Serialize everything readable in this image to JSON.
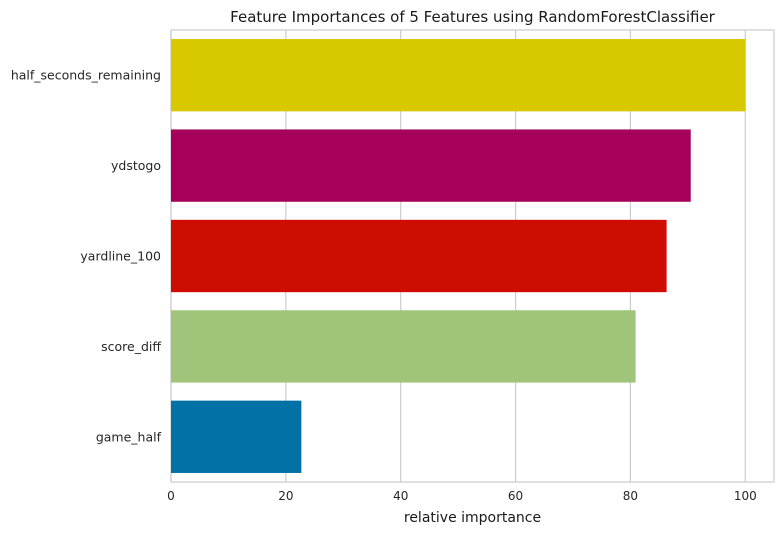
{
  "chart_data": {
    "type": "bar",
    "orientation": "horizontal",
    "title": "Feature Importances of 5 Features using RandomForestClassifier",
    "xlabel": "relative importance",
    "ylabel": "",
    "xlim": [
      0,
      105
    ],
    "xticks": [
      0,
      20,
      40,
      60,
      80,
      100
    ],
    "grid": true,
    "legend": "none",
    "categories": [
      "half_seconds_remaining",
      "ydstogo",
      "yardline_100",
      "score_diff",
      "game_half"
    ],
    "values": [
      100,
      90.5,
      86.3,
      80.9,
      22.7
    ],
    "colors": [
      "#d8c800",
      "#a5005a",
      "#cc0d00",
      "#a0c57a",
      "#0072a5"
    ]
  }
}
